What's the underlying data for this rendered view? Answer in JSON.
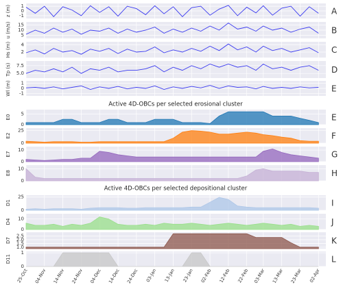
{
  "chart_data": {
    "type": "panels",
    "erosional_title": "Active 4D-OBCs per selected erosional cluster",
    "depositional_title": "Active 4D-OBCs per selected depositional cluster",
    "x": [
      "25-Oct",
      "30-Oct",
      "04-Nov",
      "09-Nov",
      "14-Nov",
      "19-Nov",
      "24-Nov",
      "29-Nov",
      "04-Dec",
      "09-Dec",
      "14-Dec",
      "19-Dec",
      "24-Dec",
      "29-Dec",
      "03-Jan",
      "08-Jan",
      "13-Jan",
      "18-Jan",
      "23-Jan",
      "28-Jan",
      "02-Feb",
      "07-Feb",
      "12-Feb",
      "17-Feb",
      "22-Feb",
      "27-Feb",
      "03-Mar",
      "08-Mar",
      "13-Mar",
      "18-Mar",
      "23-Mar",
      "28-Mar",
      "02-Apr"
    ],
    "xlim": [
      "25-Oct",
      "06-Apr"
    ],
    "xticks": [
      "25-Oct",
      "04-Nov",
      "14-Nov",
      "24-Nov",
      "04-Dec",
      "14-Dec",
      "24-Dec",
      "03-Jan",
      "13-Jan",
      "23-Jan",
      "02-Feb",
      "12-Feb",
      "22-Feb",
      "03-Mar",
      "13-Mar",
      "23-Mar",
      "02-Apr"
    ],
    "grid": true,
    "panels": [
      {
        "type": "line",
        "ylabel": "z (m)",
        "letter": "A",
        "color": "#3b3bf0",
        "ylim": [
          -1.6,
          1.6
        ],
        "yticks": [
          1,
          0,
          -1
        ],
        "values": [
          0.8,
          -0.5,
          1.0,
          -1.2,
          0.9,
          0.2,
          -1.0,
          1.1,
          -0.3,
          0.9,
          -1.1,
          1.0,
          0.5,
          -0.8,
          1.1,
          -0.6,
          0.9,
          -1.2,
          0.7,
          1.0,
          -0.9,
          0.4,
          1.2,
          -1.0,
          0.8,
          -0.4,
          1.1,
          -0.9,
          0.6,
          1.0,
          -1.1,
          0.9,
          -0.5
        ]
      },
      {
        "type": "line",
        "ylabel": "u (m/s)",
        "letter": "B",
        "color": "#3b3bf0",
        "ylim": [
          2,
          18
        ],
        "yticks": [
          15,
          10,
          5
        ],
        "values": [
          6,
          10,
          7,
          12,
          8,
          11,
          6,
          10,
          9,
          12,
          7,
          11,
          8,
          10,
          13,
          7,
          11,
          8,
          12,
          9,
          14,
          10,
          17,
          11,
          13,
          9,
          14,
          10,
          12,
          8,
          11,
          13,
          7
        ]
      },
      {
        "type": "line",
        "ylabel": "Hs (m)",
        "letter": "C",
        "color": "#3b3bf0",
        "ylim": [
          0.5,
          4.8
        ],
        "yticks": [
          4,
          2
        ],
        "values": [
          1.8,
          2.6,
          1.5,
          3.0,
          2.0,
          2.4,
          1.4,
          2.8,
          2.2,
          3.0,
          1.6,
          2.8,
          2.0,
          2.2,
          3.4,
          1.8,
          2.6,
          2.0,
          3.0,
          2.2,
          3.6,
          2.4,
          4.2,
          2.6,
          3.4,
          2.0,
          3.6,
          2.4,
          3.0,
          2.0,
          2.6,
          3.2,
          1.8
        ]
      },
      {
        "type": "line",
        "ylabel": "Tp (s)",
        "letter": "D",
        "color": "#3b3bf0",
        "ylim": [
          3.5,
          9
        ],
        "yticks": [
          7.5,
          {
            "value": 5,
            "label": "5.0"
          }
        ],
        "values": [
          5,
          6,
          5.5,
          6.5,
          5.5,
          7,
          5,
          6.5,
          6,
          7,
          5.5,
          6,
          6,
          6.5,
          7.5,
          5.5,
          7,
          6,
          7.5,
          6.5,
          8,
          7,
          8,
          7,
          7.5,
          6,
          8,
          6.5,
          7,
          6,
          7,
          7.5,
          6
        ]
      },
      {
        "type": "line",
        "ylabel": "Wl (m)",
        "letter": "E",
        "color": "#3b3bf0",
        "ylim": [
          -1.5,
          1.5
        ],
        "yticks": [
          1,
          0,
          -1
        ],
        "values": [
          0.1,
          0.2,
          0,
          0.3,
          -0.1,
          0.2,
          0.5,
          -0.2,
          0.3,
          0,
          0.4,
          -0.1,
          0.2,
          0,
          0.5,
          -0.2,
          0.3,
          0,
          0.4,
          0.1,
          0.6,
          0,
          0.5,
          0.2,
          0.3,
          -0.1,
          0.4,
          0,
          0.2,
          0,
          0.3,
          0.1,
          0.2
        ]
      },
      {
        "type": "area",
        "ylabel": "E0",
        "letter": "E",
        "color": "#1f77b4",
        "ylim": [
          0,
          7
        ],
        "yticks": [
          5,
          0
        ],
        "values": [
          1,
          1,
          1,
          1,
          2.5,
          2.5,
          1,
          1,
          1,
          2.5,
          2.5,
          1,
          1,
          1,
          2.5,
          2.5,
          2.5,
          1,
          1,
          1,
          0.5,
          4,
          6,
          6,
          6,
          6,
          6,
          4,
          4,
          4,
          3,
          2,
          1
        ]
      },
      {
        "type": "area",
        "ylabel": "E2",
        "letter": "F",
        "color": "#ff7f0e",
        "ylim": [
          0,
          30
        ],
        "yticks": [
          25,
          0
        ],
        "values": [
          4,
          3,
          2,
          3,
          3,
          3,
          2,
          2,
          3,
          3,
          3,
          3,
          3,
          3,
          3,
          3,
          10,
          22,
          25,
          24,
          22,
          18,
          18,
          20,
          22,
          20,
          17,
          15,
          12,
          10,
          5,
          4,
          4
        ]
      },
      {
        "type": "area",
        "ylabel": "E7",
        "letter": "G",
        "color": "#9467bd",
        "ylim": [
          0,
          13
        ],
        "yticks": [
          10,
          0
        ],
        "values": [
          2,
          1.5,
          1,
          1.5,
          2,
          2,
          3,
          3,
          9,
          8,
          6,
          5,
          4,
          4,
          4,
          4,
          4,
          4,
          4,
          4,
          4,
          4,
          4,
          4,
          4,
          4,
          9,
          11,
          8,
          6,
          5,
          4,
          3
        ]
      },
      {
        "type": "area",
        "ylabel": "E8",
        "letter": "H",
        "color": "#c5b0d5",
        "ylim": [
          0,
          13
        ],
        "yticks": [
          10,
          0
        ],
        "values": [
          10,
          3,
          2,
          2,
          2,
          2,
          2,
          2,
          2,
          2,
          2,
          2,
          2,
          2,
          2,
          2,
          2,
          2,
          2,
          2,
          2,
          2,
          2,
          2,
          4,
          9,
          10,
          8,
          8,
          8,
          8,
          7,
          7
        ]
      },
      {
        "type": "area",
        "ylabel": "D1",
        "letter": "I",
        "color": "#aec7e8",
        "ylim": [
          0,
          28
        ],
        "yticks": [
          25,
          0
        ],
        "values": [
          2,
          3,
          2,
          3,
          3,
          3,
          2,
          4,
          5,
          5,
          5,
          4,
          4,
          5,
          5,
          5,
          5,
          5,
          6,
          6,
          15,
          24,
          20,
          8,
          6,
          5,
          5,
          5,
          5,
          5,
          5,
          5,
          4
        ]
      },
      {
        "type": "area",
        "ylabel": "D4",
        "letter": "J",
        "color": "#98df8a",
        "ylim": [
          0,
          15
        ],
        "yticks": [
          10,
          0
        ],
        "values": [
          6,
          4,
          4,
          5,
          3,
          5,
          4,
          6,
          12,
          10,
          5,
          4,
          4,
          5,
          4,
          6,
          5,
          5,
          6,
          5,
          4,
          5,
          6,
          5,
          4,
          5,
          6,
          5,
          4,
          5,
          3,
          4,
          3
        ]
      },
      {
        "type": "area",
        "ylabel": "D7",
        "letter": "K",
        "color": "#8c564b",
        "ylim": [
          0.8,
          3.0
        ],
        "yticks": [
          {
            "value": 2.5,
            "label": "2.5"
          },
          {
            "value": 2,
            "label": "2.0"
          },
          {
            "value": 1.5,
            "label": "1.5"
          },
          {
            "value": 1,
            "label": "1.0"
          }
        ],
        "values": [
          1,
          1,
          1,
          1,
          1,
          1,
          1,
          1,
          1,
          1,
          1,
          1,
          1,
          1,
          1,
          1,
          2.8,
          2.8,
          2.8,
          2.8,
          2.8,
          2.8,
          2.8,
          2.8,
          2.8,
          2.3,
          2.3,
          2.3,
          2.3,
          1.6,
          1,
          1,
          1
        ]
      },
      {
        "type": "area",
        "ylabel": "D11",
        "letter": "L",
        "color": "#c7c7c7",
        "ylim": [
          0,
          1.1
        ],
        "yticks": [
          1,
          0
        ],
        "values": [
          0,
          0,
          0,
          0,
          1,
          1,
          1,
          1,
          1,
          1,
          0,
          0,
          0,
          0,
          0,
          0,
          0,
          0,
          1,
          1,
          0,
          0,
          0,
          0,
          0,
          0,
          0,
          0,
          0,
          0,
          0,
          0,
          0
        ]
      }
    ]
  }
}
